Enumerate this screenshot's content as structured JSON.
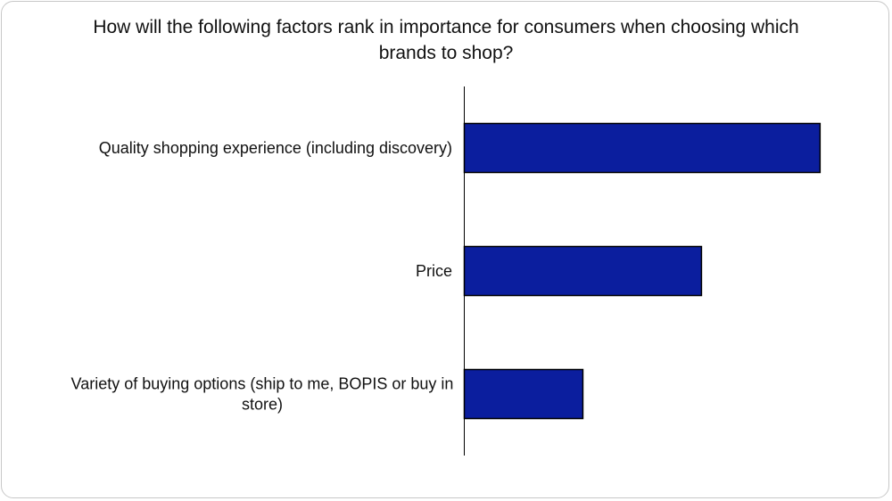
{
  "chart_data": {
    "type": "bar",
    "orientation": "horizontal",
    "title": "How will the following factors rank in importance for consumers when choosing which brands to shop?",
    "categories": [
      "Quality shopping experience (including discovery)",
      "Price",
      "Variety of buying options (ship to me, BOPIS or buy in store)"
    ],
    "values": [
      3,
      2,
      1
    ],
    "xlim": [
      0,
      3.05
    ],
    "grid": false,
    "legend": "none",
    "bar_color": "#0B1E9E",
    "bar_edge_color": "#000000",
    "axis_color": "#000000"
  }
}
